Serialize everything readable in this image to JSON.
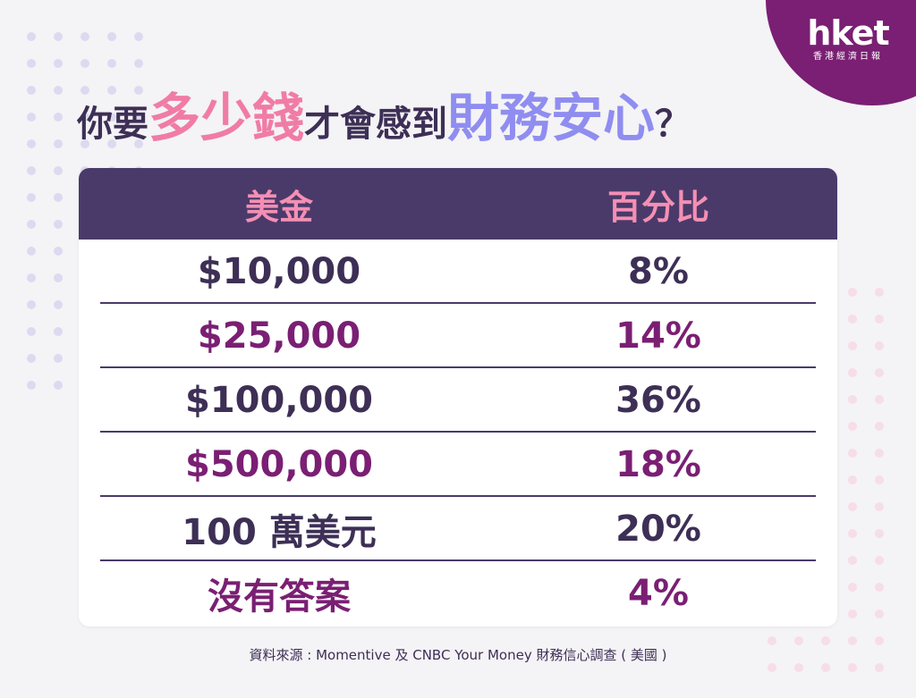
{
  "logo": {
    "main": "hket",
    "sub": "香港經濟日報"
  },
  "title": {
    "part1": "你要",
    "part2": "多少錢",
    "part3": "才會感到",
    "part4": "財務安心",
    "part5": "？"
  },
  "table": {
    "headers": [
      "美金",
      "百分比"
    ],
    "rows": [
      {
        "amount": "$10,000",
        "percent": "8%"
      },
      {
        "amount": "$25,000",
        "percent": "14%"
      },
      {
        "amount": "$100,000",
        "percent": "36%"
      },
      {
        "amount": "$500,000",
        "percent": "18%"
      },
      {
        "amount": "100 萬美元",
        "percent": "20%"
      },
      {
        "amount": "沒有答案",
        "percent": "4%"
      }
    ]
  },
  "source": "資料來源 : Momentive 及 CNBC Your Money 財務信心調查 ( 美國 )",
  "colors": {
    "background": "#f4f3f6",
    "header_bg": "#4a3a6a",
    "header_text": "#f48fb4",
    "dark_text": "#3d2f55",
    "purple_text": "#7a1f73",
    "pink_accent": "#f07ca4",
    "violet_accent": "#8f8df0",
    "logo_bg": "#7a1f73"
  }
}
